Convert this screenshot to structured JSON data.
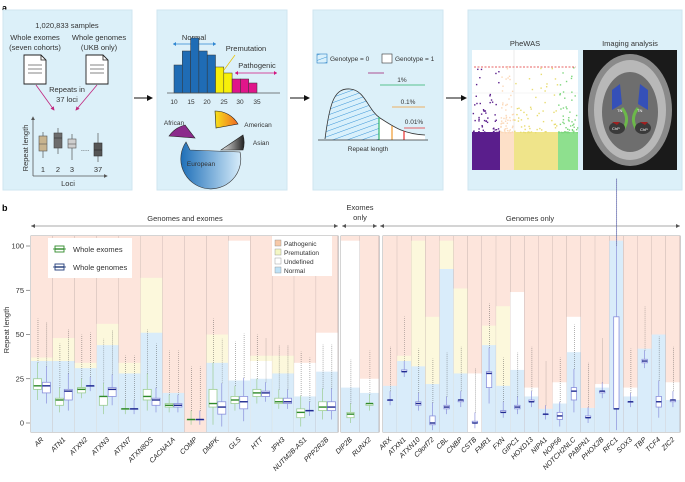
{
  "panel_a": {
    "label": "a",
    "samples": {
      "total": "1,020,833 samples",
      "exomes_line1": "Whole exomes",
      "exomes_line2": "(seven cohorts)",
      "genomes_line1": "Whole genomes",
      "genomes_line2": "(UKB only)",
      "repeats_line1": "Repeats in",
      "repeats_line2": "37 loci",
      "y_label": "Repeat length",
      "x_label": "Loci",
      "loci_ticks": [
        "1",
        "2",
        "3",
        "37"
      ],
      "ellipsis": "...."
    },
    "distribution": {
      "normal": "Normal",
      "premutation": "Premutation",
      "pathogenic": "Pathogenic",
      "ticks": [
        "10",
        "15",
        "20",
        "25",
        "30",
        "35"
      ],
      "ancestries": [
        "African",
        "American",
        "Asian",
        "European"
      ]
    },
    "genotype": {
      "genotype0": "Genotype = 0",
      "genotype1": "Genotype = 1",
      "thresholds": [
        "1%",
        "0.1%",
        "0.01%"
      ],
      "x_label": "Repeat length"
    },
    "analysis": {
      "phewas_title": "PheWAS",
      "imaging_title": "Imaging analysis",
      "brain_labels": [
        "TN",
        "TN",
        "ChP",
        "ChP"
      ]
    }
  },
  "panel_b": {
    "label": "b",
    "groups": [
      {
        "label": "Genomes and exomes"
      },
      {
        "label_line1": "Exomes",
        "label_line2": "only"
      },
      {
        "label": "Genomes only"
      }
    ],
    "y_label": "Repeat length",
    "y_ticks": [
      "0",
      "25",
      "50",
      "75",
      "100"
    ],
    "legend_boxes": {
      "exomes": "Whole exomes",
      "genomes": "Whole genomes"
    },
    "legend_regions": {
      "pathogenic": "Pathogenic",
      "premutation": "Premutation",
      "undefined": "Undefined",
      "normal": "Normal"
    },
    "colors": {
      "pathogenic": "#fde5dc",
      "premutation": "#fcf8dc",
      "undefined": "#ffffff",
      "normal": "#d9ecfa",
      "exome": "#2f8a2a",
      "exome_box": "#9ccd92",
      "genome": "#1f2a90",
      "genome_box": "#8a90dc"
    }
  },
  "chart_data": {
    "type": "box",
    "ylabel": "Repeat length",
    "ylim": [
      -5,
      105
    ],
    "y_ticks": [
      0,
      25,
      50,
      75,
      100
    ],
    "series": [
      {
        "name": "Whole exomes"
      },
      {
        "name": "Whole genomes"
      }
    ],
    "region_legend": [
      "Pathogenic",
      "Premutation",
      "Undefined",
      "Normal"
    ],
    "loci": [
      {
        "group": 0,
        "name": "AR",
        "normal": 35,
        "premutation": 37,
        "exome": [
          19,
          21,
          25
        ],
        "genome": [
          17,
          21,
          23
        ]
      },
      {
        "group": 0,
        "name": "ATN1",
        "normal": 35,
        "premutation": 48,
        "exome": [
          10,
          13,
          14
        ],
        "genome": [
          13,
          18,
          19
        ]
      },
      {
        "group": 0,
        "name": "ATXN2",
        "normal": 31,
        "premutation": 34,
        "exome": [
          17,
          19,
          20
        ],
        "genome": [
          21,
          21,
          21
        ]
      },
      {
        "group": 0,
        "name": "ATXN3",
        "normal": 44,
        "premutation": 56,
        "exome": [
          10,
          15,
          15
        ],
        "genome": [
          15,
          19,
          20
        ]
      },
      {
        "group": 0,
        "name": "ATXN7",
        "normal": 28,
        "premutation": 34,
        "exome": [
          8,
          8,
          8
        ],
        "genome": [
          8,
          8,
          8
        ]
      },
      {
        "group": 0,
        "name": "ATXN8OS",
        "normal": 51,
        "premutation": 82,
        "exome": [
          13,
          15,
          19
        ],
        "genome": [
          10,
          13,
          14
        ]
      },
      {
        "group": 0,
        "name": "CACNA1A",
        "normal": 17,
        "exome": [
          9,
          10,
          11
        ],
        "genome": [
          9,
          10,
          11
        ]
      },
      {
        "group": 0,
        "name": "COMP",
        "normal": 0,
        "exome": [
          2,
          2,
          2
        ],
        "genome": [
          2,
          2,
          2
        ]
      },
      {
        "group": 0,
        "name": "DMPK",
        "normal": 34,
        "premutation": 50,
        "exome": [
          9,
          11,
          19
        ],
        "genome": [
          5,
          9,
          12
        ]
      },
      {
        "group": 0,
        "name": "GLS",
        "normal": 24,
        "undefined": 103,
        "exome": [
          11,
          13,
          15
        ],
        "genome": [
          8,
          12,
          15
        ]
      },
      {
        "group": 0,
        "name": "HTT",
        "normal": 25,
        "undefined": 35,
        "premutation": 38,
        "exome": [
          15,
          17,
          19
        ],
        "genome": [
          15,
          17,
          18
        ]
      },
      {
        "group": 0,
        "name": "JPH3",
        "normal": 28,
        "premutation": 38,
        "exome": [
          11,
          12,
          14
        ],
        "genome": [
          11,
          12,
          14
        ]
      },
      {
        "group": 0,
        "name": "NUTM2B-AS1",
        "normal": 15,
        "undefined": 34,
        "exome": [
          3,
          6,
          8
        ],
        "genome": [
          7,
          7,
          7
        ]
      },
      {
        "group": 0,
        "name": "PPP2R2B",
        "normal": 29,
        "undefined": 51,
        "exome": [
          7,
          9,
          12
        ],
        "genome": [
          7,
          9,
          12
        ]
      },
      {
        "group": 1,
        "name": "DIP2B",
        "normal": 20,
        "undefined": 103,
        "exome": [
          3,
          5,
          6
        ]
      },
      {
        "group": 1,
        "name": "RUNX2",
        "normal": 17,
        "undefined": 25,
        "exome": [
          10,
          11,
          11
        ]
      },
      {
        "group": 2,
        "name": "ARX",
        "normal": 21,
        "genome": [
          13,
          13,
          13
        ]
      },
      {
        "group": 2,
        "name": "ATXN1",
        "normal": 35,
        "premutation": 38,
        "genome": [
          29,
          29,
          30
        ]
      },
      {
        "group": 2,
        "name": "ATXN10",
        "normal": 32,
        "premutation": 103,
        "genome": [
          10,
          11,
          12
        ]
      },
      {
        "group": 2,
        "name": "C9orf72",
        "normal": 22,
        "premutation": 60,
        "genome": [
          -1,
          0,
          4
        ]
      },
      {
        "group": 2,
        "name": "CBL",
        "normal": 87,
        "premutation": 103,
        "genome": [
          8,
          9,
          10
        ]
      },
      {
        "group": 2,
        "name": "CNBP",
        "normal": 28,
        "premutation": 76,
        "genome": [
          12,
          13,
          13
        ]
      },
      {
        "group": 2,
        "name": "CSTB",
        "normal": 0,
        "undefined": 28,
        "genome": [
          0,
          0,
          1
        ]
      },
      {
        "group": 2,
        "name": "FMR1",
        "normal": 44,
        "premutation": 55,
        "genome": [
          20,
          28,
          29
        ]
      },
      {
        "group": 2,
        "name": "FXN",
        "normal": 21,
        "premutation": 66,
        "genome": [
          6,
          6,
          7
        ]
      },
      {
        "group": 2,
        "name": "GIPC1",
        "normal": 30,
        "undefined": 74,
        "genome": [
          8,
          9,
          10
        ]
      },
      {
        "group": 2,
        "name": "HOXD13",
        "normal": 15,
        "undefined": 20,
        "genome": [
          12,
          12,
          13
        ]
      },
      {
        "group": 2,
        "name": "NIPA1",
        "normal": 8,
        "genome": [
          5,
          5,
          5
        ]
      },
      {
        "group": 2,
        "name": "NOP56",
        "normal": 11,
        "undefined": 23,
        "genome": [
          2,
          4,
          6
        ]
      },
      {
        "group": 2,
        "name": "NOTCH2NLC",
        "normal": 40,
        "undefined": 60,
        "genome": [
          13,
          18,
          20
        ]
      },
      {
        "group": 2,
        "name": "PABPN1",
        "normal": 8.5,
        "genome": [
          3,
          3,
          4
        ]
      },
      {
        "group": 2,
        "name": "PHOX2B",
        "normal": 20,
        "undefined": 22,
        "genome": [
          17,
          18,
          18
        ]
      },
      {
        "group": 2,
        "name": "RFC1",
        "normal": 103,
        "genome": [
          8,
          8,
          60
        ]
      },
      {
        "group": 2,
        "name": "SOX3",
        "normal": 15,
        "undefined": 20,
        "genome": [
          12,
          12,
          12
        ]
      },
      {
        "group": 2,
        "name": "TBP",
        "normal": 42,
        "genome": [
          34,
          35,
          36
        ]
      },
      {
        "group": 2,
        "name": "TCF4",
        "normal": 50,
        "genome": [
          9,
          12,
          15
        ]
      },
      {
        "group": 2,
        "name": "ZIC2",
        "normal": 13,
        "undefined": 23,
        "genome": [
          12,
          13,
          13
        ]
      }
    ]
  }
}
